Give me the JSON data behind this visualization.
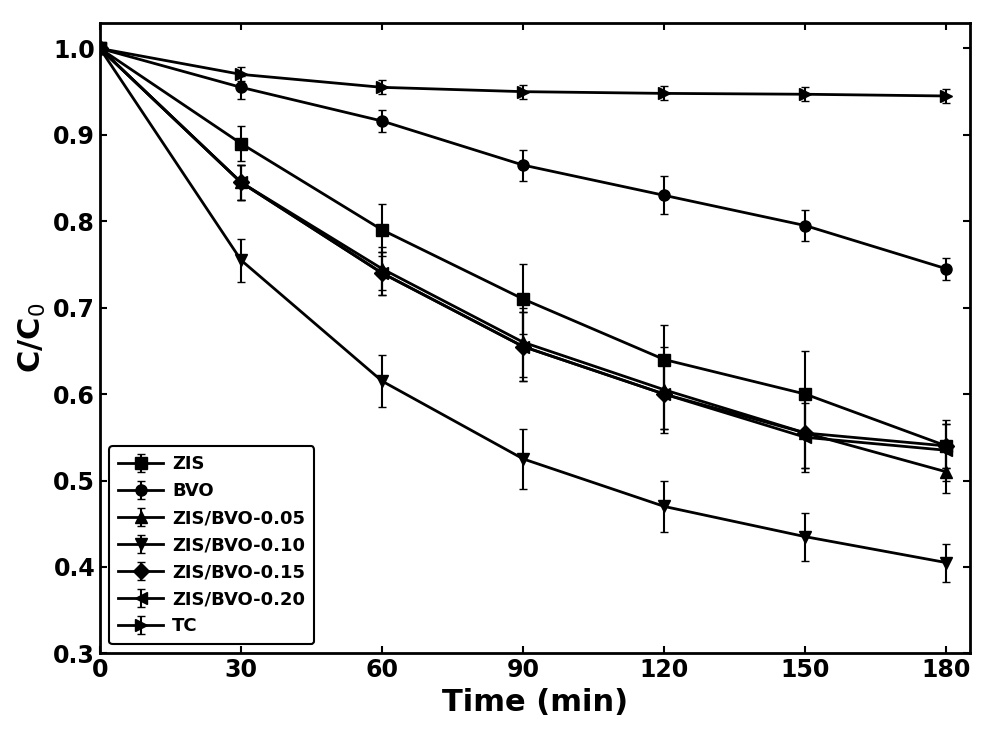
{
  "x": [
    0,
    30,
    60,
    90,
    120,
    150,
    180
  ],
  "series": [
    {
      "key": "ZIS",
      "y": [
        1.0,
        0.89,
        0.79,
        0.71,
        0.64,
        0.6,
        0.54
      ],
      "yerr": [
        0.0,
        0.02,
        0.03,
        0.04,
        0.04,
        0.05,
        0.025
      ],
      "marker": "s",
      "label": "ZIS"
    },
    {
      "key": "BVO",
      "y": [
        1.0,
        0.955,
        0.916,
        0.865,
        0.83,
        0.795,
        0.745
      ],
      "yerr": [
        0.0,
        0.013,
        0.013,
        0.018,
        0.022,
        0.018,
        0.013
      ],
      "marker": "o",
      "label": "BVO"
    },
    {
      "key": "ZIS/BVO-0.05",
      "y": [
        1.0,
        0.845,
        0.745,
        0.66,
        0.605,
        0.555,
        0.51
      ],
      "yerr": [
        0.0,
        0.02,
        0.025,
        0.04,
        0.05,
        0.04,
        0.025
      ],
      "marker": "^",
      "label": "ZIS/BVO-0.05"
    },
    {
      "key": "ZIS/BVO-0.10",
      "y": [
        1.0,
        0.755,
        0.615,
        0.525,
        0.47,
        0.435,
        0.405
      ],
      "yerr": [
        0.0,
        0.025,
        0.03,
        0.035,
        0.03,
        0.028,
        0.022
      ],
      "marker": "v",
      "label": "ZIS/BVO-0.10"
    },
    {
      "key": "ZIS/BVO-0.15",
      "y": [
        1.0,
        0.845,
        0.74,
        0.655,
        0.6,
        0.555,
        0.54
      ],
      "yerr": [
        0.0,
        0.02,
        0.025,
        0.04,
        0.04,
        0.04,
        0.025
      ],
      "marker": "D",
      "label": "ZIS/BVO-0.15"
    },
    {
      "key": "ZIS/BVO-0.20",
      "y": [
        1.0,
        0.845,
        0.74,
        0.655,
        0.6,
        0.55,
        0.535
      ],
      "yerr": [
        0.0,
        0.02,
        0.025,
        0.04,
        0.04,
        0.04,
        0.035
      ],
      "marker": "<",
      "label": "ZIS/BVO-0.20"
    },
    {
      "key": "TC",
      "y": [
        1.0,
        0.97,
        0.955,
        0.95,
        0.948,
        0.947,
        0.945
      ],
      "yerr": [
        0.0,
        0.008,
        0.008,
        0.008,
        0.008,
        0.008,
        0.008
      ],
      "marker": ">",
      "label": "TC"
    }
  ],
  "xlabel": "Time (min)",
  "ylabel": "C/C$_0$",
  "xlim": [
    0,
    185
  ],
  "ylim": [
    0.3,
    1.03
  ],
  "yticks": [
    0.3,
    0.4,
    0.5,
    0.6,
    0.7,
    0.8,
    0.9,
    1.0
  ],
  "xticks": [
    0,
    30,
    60,
    90,
    120,
    150,
    180
  ],
  "line_color": "#000000",
  "line_width": 2.0,
  "marker_size": 8,
  "capsize": 3,
  "elinewidth": 1.5,
  "legend_loc": "lower left",
  "legend_fontsize": 13,
  "xlabel_fontsize": 22,
  "ylabel_fontsize": 22,
  "tick_fontsize": 17
}
